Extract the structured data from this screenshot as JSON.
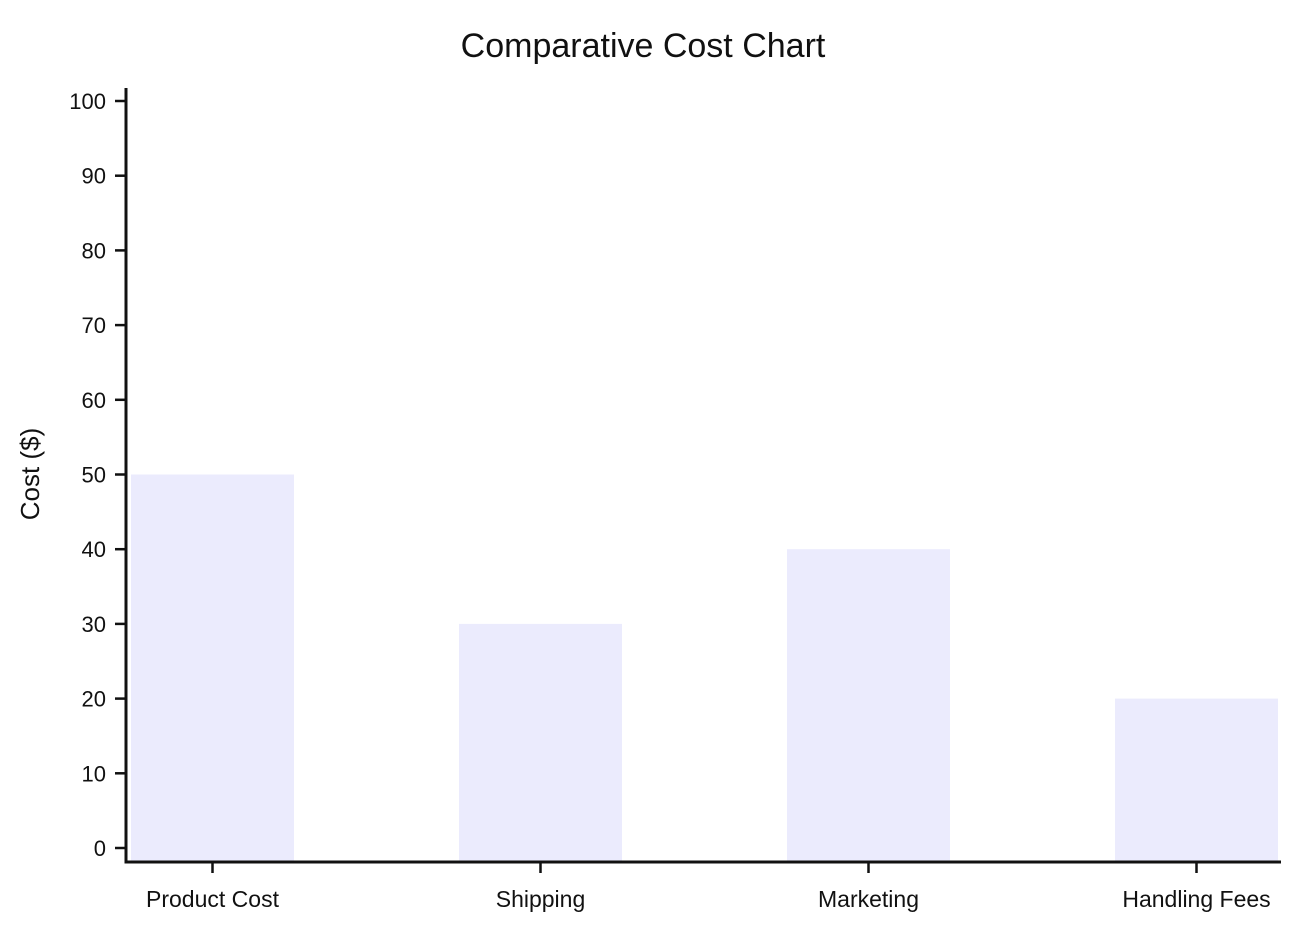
{
  "chart_data": {
    "type": "bar",
    "title": "Comparative Cost Chart",
    "xlabel": "",
    "ylabel": "Cost ($)",
    "categories": [
      "Product Cost",
      "Shipping",
      "Marketing",
      "Handling Fees"
    ],
    "values": [
      50,
      30,
      40,
      20
    ],
    "ylim": [
      0,
      100
    ],
    "yticks": [
      0,
      10,
      20,
      30,
      40,
      50,
      60,
      70,
      80,
      90,
      100
    ],
    "grid": false,
    "legend": "none",
    "colors": {
      "bar": "#ebebfd",
      "axis": "#111111"
    }
  }
}
